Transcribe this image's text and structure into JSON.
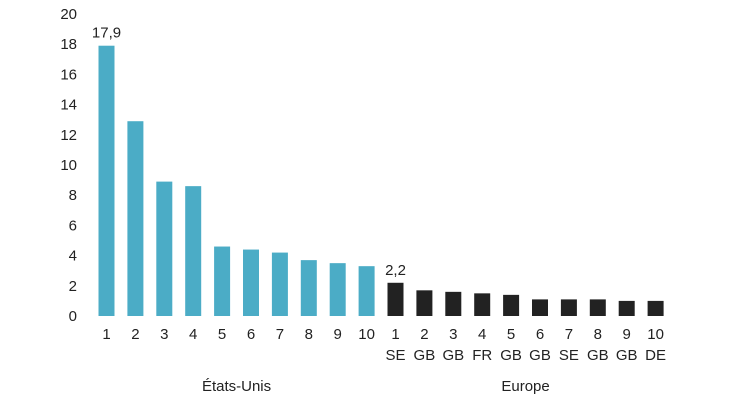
{
  "chart_data": {
    "type": "bar",
    "title": "",
    "xlabel": "",
    "ylabel": "",
    "ylim": [
      0,
      20
    ],
    "yticks": [
      "0",
      "2",
      "4",
      "6",
      "8",
      "10",
      "12",
      "14",
      "16",
      "18",
      "20"
    ],
    "grid": false,
    "legend": "none",
    "groups": [
      {
        "name": "États-Unis",
        "color": "#4bacc6",
        "categories": [
          "1",
          "2",
          "3",
          "4",
          "5",
          "6",
          "7",
          "8",
          "9",
          "10"
        ],
        "countries": [],
        "values": [
          17.9,
          12.9,
          8.9,
          8.6,
          4.6,
          4.4,
          4.2,
          3.7,
          3.5,
          3.3
        ],
        "data_labels": [
          "17,9",
          "",
          "",
          "",
          "",
          "",
          "",
          "",
          "",
          ""
        ]
      },
      {
        "name": "Europe",
        "color": "#222222",
        "categories": [
          "1",
          "2",
          "3",
          "4",
          "5",
          "6",
          "7",
          "8",
          "9",
          "10"
        ],
        "countries": [
          "SE",
          "GB",
          "GB",
          "FR",
          "GB",
          "GB",
          "SE",
          "GB",
          "GB",
          "DE"
        ],
        "values": [
          2.2,
          1.7,
          1.6,
          1.5,
          1.4,
          1.1,
          1.1,
          1.1,
          1.0,
          1.0
        ],
        "data_labels": [
          "2,2",
          "",
          "",
          "",
          "",
          "",
          "",
          "",
          "",
          ""
        ]
      }
    ]
  }
}
